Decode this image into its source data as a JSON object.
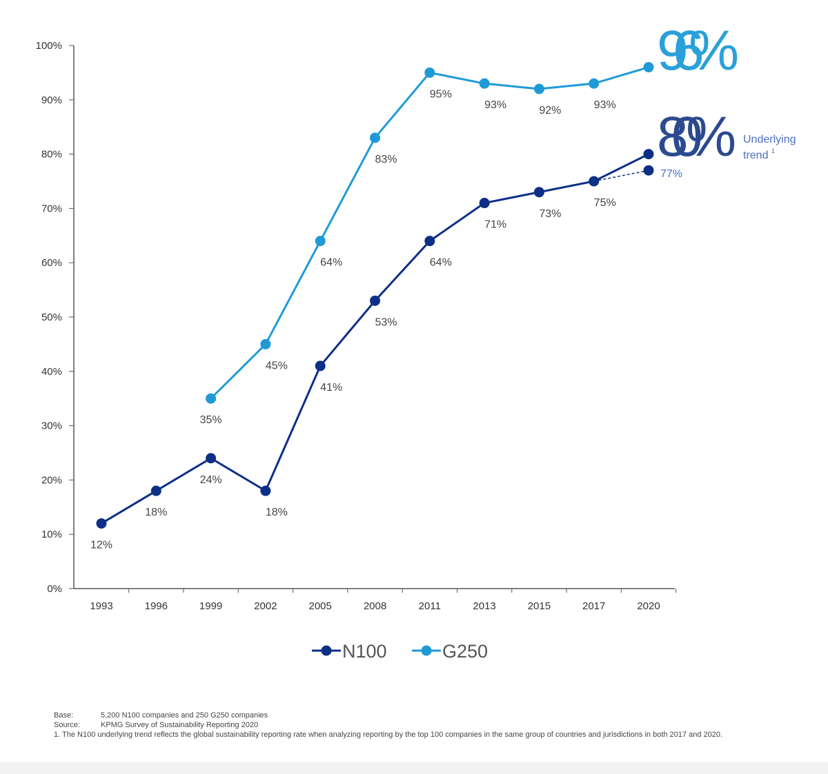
{
  "chart_data": {
    "type": "line",
    "categories": [
      "1993",
      "1996",
      "1999",
      "2002",
      "2005",
      "2008",
      "2011",
      "2013",
      "2015",
      "2017",
      "2020"
    ],
    "ylim": [
      0,
      100
    ],
    "yticks": [
      "0%",
      "10%",
      "20%",
      "30%",
      "40%",
      "50%",
      "60%",
      "70%",
      "80%",
      "90%",
      "100%"
    ],
    "grid": false,
    "legend_placement": "bottom-center",
    "series": [
      {
        "name": "N100",
        "color": "#0d2f86",
        "values": [
          12,
          18,
          24,
          18,
          41,
          53,
          64,
          71,
          73,
          75,
          80
        ],
        "labels": [
          "12%",
          "18%",
          "24%",
          "18%",
          "41%",
          "53%",
          "64%",
          "71%",
          "73%",
          "75%",
          ""
        ]
      },
      {
        "name": "G250",
        "color": "#1f9ad7",
        "values": [
          null,
          null,
          35,
          45,
          64,
          83,
          95,
          93,
          92,
          93,
          96
        ],
        "labels": [
          "",
          "",
          "35%",
          "45%",
          "64%",
          "83%",
          "95%",
          "93%",
          "92%",
          "93%",
          ""
        ]
      }
    ],
    "underlying_trend": {
      "from": "2017",
      "to": "2020",
      "values": [
        75,
        77
      ],
      "label": "77%",
      "color": "#0d2f86"
    },
    "annotations": {
      "g250_big": "96%",
      "n100_big": "80%",
      "trend_text_1": "Underlying",
      "trend_text_2": "trend",
      "trend_sup": "1"
    }
  },
  "notes": {
    "base_key": "Base:",
    "base_val": "5,200 N100 companies and 250 G250 companies",
    "source_key": "Source:",
    "source_val": "KPMG Survey of Sustainability Reporting 2020",
    "footnote": "1.  The N100 underlying trend reflects the global sustainability reporting rate when analyzing reporting by the top 100 companies in the same group of countries and jurisdictions in both 2017 and 2020."
  }
}
